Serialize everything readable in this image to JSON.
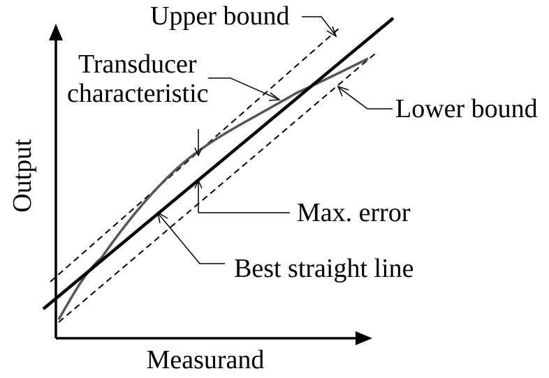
{
  "diagram": {
    "axes": {
      "x_label": "Measurand",
      "y_label": "Output"
    },
    "labels": {
      "upper_bound": "Upper bound",
      "lower_bound": "Lower bound",
      "transducer_line1": "Transducer",
      "transducer_line2": "characteristic",
      "max_error": "Max. error",
      "best_straight_line": "Best straight line"
    },
    "colors": {
      "axes": "#000000",
      "best_line": "#000000",
      "bounds": "#000000",
      "characteristic_curve": "#555555",
      "background": "#ffffff"
    }
  }
}
